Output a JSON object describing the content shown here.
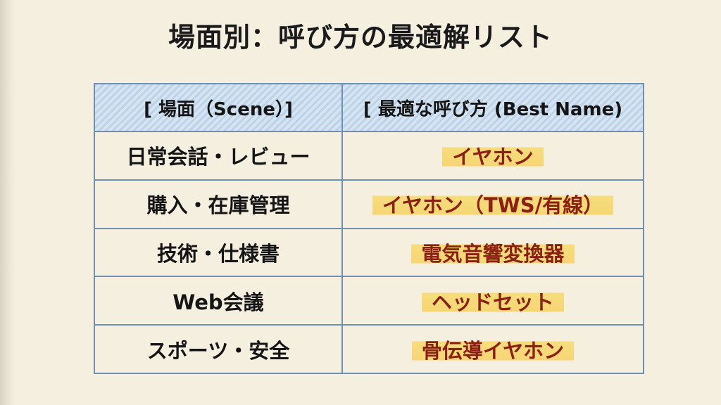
{
  "title": "場面別：呼び方の最適解リスト",
  "table": {
    "headers": [
      "[ 場面（Scene）]",
      "[ 最適な呼び方 (Best Name)"
    ],
    "rows": [
      {
        "scene": "日常会話・レビュー",
        "best": "イヤホン"
      },
      {
        "scene": "購入・在庫管理",
        "best": "イヤホン（TWS/有線）"
      },
      {
        "scene": "技術・仕様書",
        "best": "電気音響変換器"
      },
      {
        "scene": "Web会議",
        "best": "ヘッドセット"
      },
      {
        "scene": "スポーツ・安全",
        "best": "骨伝導イヤホン"
      }
    ]
  },
  "colors": {
    "header_fill": "#c8dbee",
    "highlight": "#f7d75a",
    "answer_text": "#8a1f12",
    "grid": "#6f8fb4"
  }
}
